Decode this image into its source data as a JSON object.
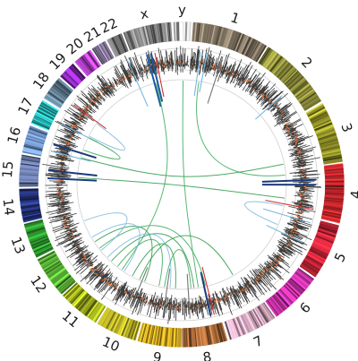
{
  "chromosomes": [
    {
      "label": "1",
      "color": "#8a7d6a",
      "weight": 248
    },
    {
      "label": "2",
      "color": "#8a8a3a",
      "weight": 242
    },
    {
      "label": "3",
      "color": "#9a9a2a",
      "weight": 198
    },
    {
      "label": "4",
      "color": "#c0262b",
      "weight": 190
    },
    {
      "label": "5",
      "color": "#d4283c",
      "weight": 181
    },
    {
      "label": "6",
      "color": "#cc33aa",
      "weight": 171
    },
    {
      "label": "7",
      "color": "#c9a0b4",
      "weight": 159
    },
    {
      "label": "8",
      "color": "#a86a3a",
      "weight": 145
    },
    {
      "label": "9",
      "color": "#c8a020",
      "weight": 138
    },
    {
      "label": "10",
      "color": "#b8b028",
      "weight": 134
    },
    {
      "label": "11",
      "color": "#a8b820",
      "weight": 135
    },
    {
      "label": "12",
      "color": "#5cb838",
      "weight": 133
    },
    {
      "label": "13",
      "color": "#2e9a30",
      "weight": 114
    },
    {
      "label": "14",
      "color": "#2a3a8a",
      "weight": 107
    },
    {
      "label": "15",
      "color": "#6a7aa8",
      "weight": 102
    },
    {
      "label": "16",
      "color": "#7aa0d8",
      "weight": 90
    },
    {
      "label": "17",
      "color": "#2ab8b8",
      "weight": 83
    },
    {
      "label": "18",
      "color": "#6a8aa0",
      "weight": 80
    },
    {
      "label": "19",
      "color": "#8a2ab8",
      "weight": 59
    },
    {
      "label": "20",
      "color": "#b040c8",
      "weight": 64
    },
    {
      "label": "21",
      "color": "#9a8ab0",
      "weight": 47
    },
    {
      "label": "22",
      "color": "#7a7a7a",
      "weight": 51
    },
    {
      "label": "x",
      "color": "#8a8a8a",
      "weight": 156
    },
    {
      "label": "y",
      "color": "#c8c8c8",
      "weight": 57
    }
  ],
  "links": [
    {
      "from": [
        "3",
        0.85
      ],
      "to": [
        "16",
        0.35
      ],
      "color": "#2e9a4a"
    },
    {
      "from": [
        "4",
        0.7
      ],
      "to": [
        "15",
        0.4
      ],
      "color": "#2e9a4a"
    },
    {
      "from": [
        "x",
        0.4
      ],
      "to": [
        "11",
        0.2
      ],
      "color": "#3aaa5a"
    },
    {
      "from": [
        "y",
        0.6
      ],
      "to": [
        "8",
        0.45
      ],
      "color": "#3aaa5a"
    },
    {
      "from": [
        "1",
        0.2
      ],
      "to": [
        "4",
        0.1
      ],
      "color": "#3aaa5a"
    },
    {
      "from": [
        "17",
        0.5
      ],
      "to": [
        "16",
        0.8
      ],
      "color": "#3aaa5a"
    },
    {
      "from": [
        "10",
        0.5
      ],
      "to": [
        "7",
        0.3
      ],
      "color": "#2e9a4a"
    },
    {
      "from": [
        "11",
        0.7
      ],
      "to": [
        "8",
        0.6
      ],
      "color": "#2e9a4a"
    },
    {
      "from": [
        "11",
        0.4
      ],
      "to": [
        "9",
        0.8
      ],
      "color": "#3aaa5a"
    },
    {
      "from": [
        "12",
        0.6
      ],
      "to": [
        "10",
        0.3
      ],
      "color": "#2e9a4a"
    },
    {
      "from": [
        "12",
        0.3
      ],
      "to": [
        "8",
        0.2
      ],
      "color": "#3aaa5a"
    },
    {
      "from": [
        "13",
        0.5
      ],
      "to": [
        "12",
        0.2
      ],
      "color": "#7ab8e0"
    },
    {
      "from": [
        "11",
        0.9
      ],
      "to": [
        "9",
        0.4
      ],
      "color": "#7ab8e0"
    },
    {
      "from": [
        "10",
        0.8
      ],
      "to": [
        "9",
        0.2
      ],
      "color": "#2e9a4a"
    },
    {
      "from": [
        "12",
        0.8
      ],
      "to": [
        "11",
        0.1
      ],
      "color": "#7ab8e0"
    },
    {
      "from": [
        "9",
        0.6
      ],
      "to": [
        "8",
        0.7
      ],
      "color": "#3aaa5a"
    },
    {
      "from": [
        "18",
        0.4
      ],
      "to": [
        "17",
        0.6
      ],
      "color": "#7ab8e0"
    },
    {
      "from": [
        "5",
        0.4
      ],
      "to": [
        "4",
        0.9
      ],
      "color": "#7ab8e0"
    }
  ],
  "radial_marks": [
    {
      "chr": "x",
      "pos": 0.35,
      "color": "#1a5aa0",
      "len": 60
    },
    {
      "chr": "x",
      "pos": 0.45,
      "color": "#1a5aa0",
      "len": 55
    },
    {
      "chr": "x",
      "pos": 0.55,
      "color": "#d03030",
      "len": 50
    },
    {
      "chr": "22",
      "pos": 0.7,
      "color": "#7ab8e0",
      "len": 55
    },
    {
      "chr": "1",
      "pos": 0.15,
      "color": "#7ab8e0",
      "len": 50
    },
    {
      "chr": "1",
      "pos": 0.25,
      "color": "#7ab8e0",
      "len": 45
    },
    {
      "chr": "1",
      "pos": 0.5,
      "color": "#777777",
      "len": 55
    },
    {
      "chr": "2",
      "pos": 0.6,
      "color": "#7ab8e0",
      "len": 40
    },
    {
      "chr": "4",
      "pos": 0.25,
      "color": "#1a3a7a",
      "len": 60
    },
    {
      "chr": "4",
      "pos": 0.35,
      "color": "#1a3a7a",
      "len": 60
    },
    {
      "chr": "4",
      "pos": 0.85,
      "color": "#d03030",
      "len": 55
    },
    {
      "chr": "5",
      "pos": 0.1,
      "color": "#7ab8e0",
      "len": 55
    },
    {
      "chr": "5",
      "pos": 0.55,
      "color": "#7ab8e0",
      "len": 45
    },
    {
      "chr": "8",
      "pos": 0.15,
      "color": "#d03030",
      "len": 55
    },
    {
      "chr": "8",
      "pos": 0.25,
      "color": "#1a3a7a",
      "len": 50
    },
    {
      "chr": "8",
      "pos": 0.8,
      "color": "#777777",
      "len": 50
    },
    {
      "chr": "9",
      "pos": 0.5,
      "color": "#777777",
      "len": 55
    },
    {
      "chr": "10",
      "pos": 0.4,
      "color": "#777777",
      "len": 50
    },
    {
      "chr": "15",
      "pos": 0.3,
      "color": "#1a3a7a",
      "len": 55
    },
    {
      "chr": "15",
      "pos": 0.6,
      "color": "#1a3a7a",
      "len": 55
    },
    {
      "chr": "16",
      "pos": 0.3,
      "color": "#7ab8e0",
      "len": 45
    },
    {
      "chr": "16",
      "pos": 0.6,
      "color": "#1a3a7a",
      "len": 50
    },
    {
      "chr": "17",
      "pos": 0.5,
      "color": "#7ab8e0",
      "len": 45
    },
    {
      "chr": "18",
      "pos": 0.5,
      "color": "#d03030",
      "len": 45
    }
  ]
}
